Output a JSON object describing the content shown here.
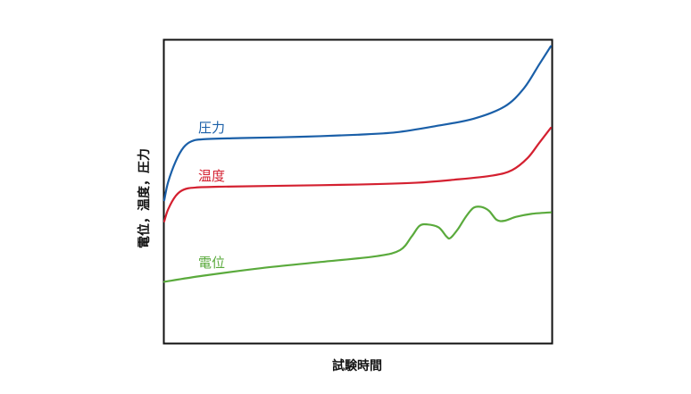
{
  "chart_data": {
    "type": "line",
    "title": "",
    "xlabel": "試験時間",
    "ylabel": "電位，温度，圧力",
    "xlim": [
      0,
      100
    ],
    "ylim": [
      0,
      100
    ],
    "grid": false,
    "legend": "inline labels",
    "series": [
      {
        "name": "圧力",
        "color": "#1a5fa8",
        "points": [
          [
            0,
            47
          ],
          [
            1,
            53
          ],
          [
            3,
            60
          ],
          [
            5,
            64.5
          ],
          [
            7,
            66.5
          ],
          [
            10,
            67.2
          ],
          [
            20,
            67.6
          ],
          [
            35,
            68.0
          ],
          [
            50,
            68.7
          ],
          [
            60,
            69.5
          ],
          [
            70,
            71.5
          ],
          [
            80,
            74
          ],
          [
            88,
            78
          ],
          [
            93,
            84
          ],
          [
            97,
            92
          ],
          [
            100,
            98
          ]
        ]
      },
      {
        "name": "温度",
        "color": "#d42030",
        "points": [
          [
            0,
            40
          ],
          [
            1,
            44
          ],
          [
            3,
            48.5
          ],
          [
            5,
            50.5
          ],
          [
            8,
            51.2
          ],
          [
            15,
            51.5
          ],
          [
            30,
            51.8
          ],
          [
            50,
            52.2
          ],
          [
            65,
            52.8
          ],
          [
            75,
            53.8
          ],
          [
            85,
            55.2
          ],
          [
            90,
            57
          ],
          [
            94,
            61
          ],
          [
            97,
            66
          ],
          [
            100,
            71
          ]
        ]
      },
      {
        "name": "電位",
        "color": "#5aaa3c",
        "points": [
          [
            0,
            20
          ],
          [
            10,
            22
          ],
          [
            25,
            24.5
          ],
          [
            40,
            26.5
          ],
          [
            55,
            28.5
          ],
          [
            61,
            30.5
          ],
          [
            64,
            35
          ],
          [
            66,
            38.5
          ],
          [
            68,
            39
          ],
          [
            71,
            38
          ],
          [
            73,
            35
          ],
          [
            74,
            34.5
          ],
          [
            76,
            37.5
          ],
          [
            78,
            41.5
          ],
          [
            80,
            44.5
          ],
          [
            82,
            44.8
          ],
          [
            84,
            43.5
          ],
          [
            86,
            40.5
          ],
          [
            88,
            40.2
          ],
          [
            91,
            41.5
          ],
          [
            95,
            42.5
          ],
          [
            100,
            43
          ]
        ]
      }
    ]
  }
}
